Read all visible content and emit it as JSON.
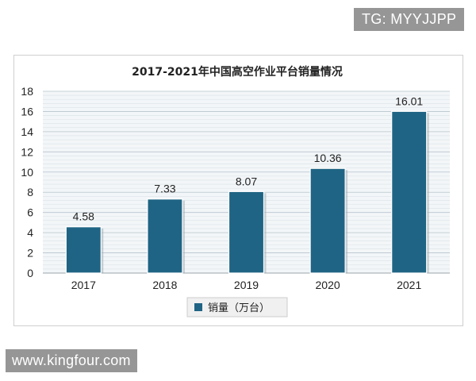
{
  "watermarks": {
    "top": "TG: MYYJJPP",
    "bottom": "www.kingfour.com"
  },
  "chart_data": {
    "type": "bar",
    "title": "2017-2021年中国高空作业平台销量情况",
    "categories": [
      "2017",
      "2018",
      "2019",
      "2020",
      "2021"
    ],
    "series": [
      {
        "name": "销量（万台）",
        "values": [
          4.58,
          7.33,
          8.07,
          10.36,
          16.01
        ],
        "color": "#1f6484"
      }
    ],
    "ylim": [
      0,
      18
    ],
    "yticks": [
      0,
      2,
      4,
      6,
      8,
      10,
      12,
      14,
      16,
      18
    ],
    "grid": true,
    "legend_position": "bottom"
  }
}
